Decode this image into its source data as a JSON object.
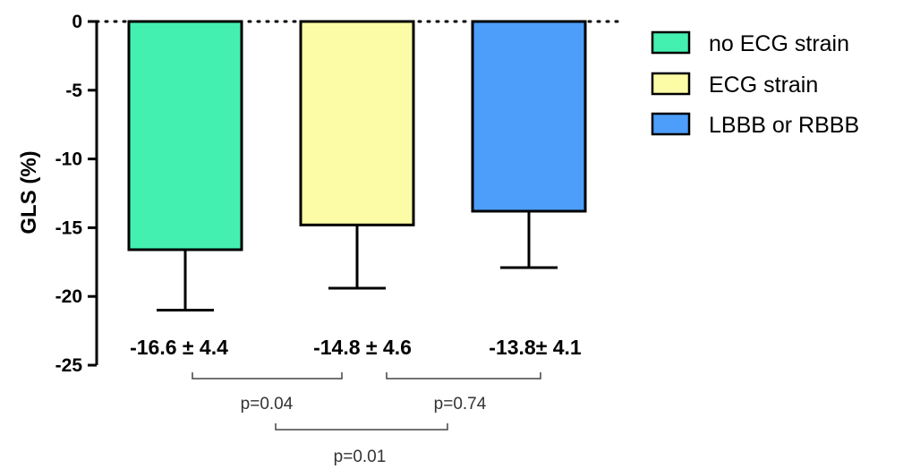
{
  "chart_data": {
    "type": "bar",
    "xlabel": "",
    "ylabel": "GLS (%)",
    "ylim": [
      -25,
      0
    ],
    "yticks": [
      0,
      -5,
      -10,
      -15,
      -20,
      -25
    ],
    "categories": [
      "no ECG strain",
      "ECG strain",
      "LBBB or RBBB"
    ],
    "values": [
      -16.6,
      -14.8,
      -13.8
    ],
    "errors": [
      4.4,
      4.6,
      4.1
    ],
    "colors": [
      "#44f0b0",
      "#fcfba6",
      "#4d9dfa"
    ],
    "data_labels": [
      "-16.6 ± 4.4",
      "-14.8 ± 4.6",
      "-13.8± 4.1"
    ],
    "zero_line": "dotted",
    "legend": {
      "position": "top-right",
      "entries": [
        "no ECG strain",
        "ECG strain",
        "LBBB or RBBB"
      ]
    },
    "comparisons": [
      {
        "groups": [
          0,
          1
        ],
        "label": "p=0.04"
      },
      {
        "groups": [
          1,
          2
        ],
        "label": "p=0.74"
      },
      {
        "groups": [
          0,
          2
        ],
        "label": "p=0.01"
      }
    ]
  }
}
